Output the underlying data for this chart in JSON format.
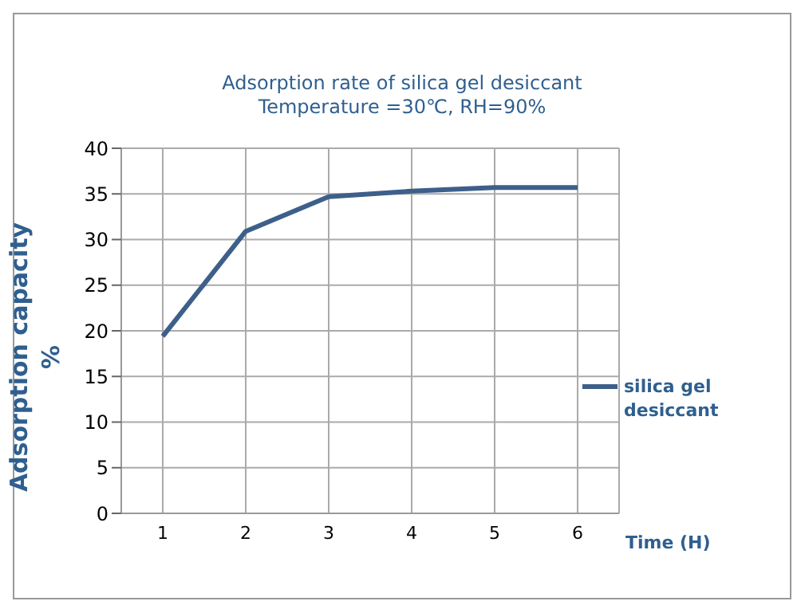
{
  "chart_data": {
    "type": "line",
    "title": "Adsorption rate of silica gel desiccant",
    "subtitle": "Temperature =30℃,  RH=90%",
    "xlabel": "Time (H)",
    "ylabel": "Adsorption capacity %",
    "categories": [
      "1",
      "2",
      "3",
      "4",
      "5",
      "6"
    ],
    "series": [
      {
        "name": "silica gel desiccant",
        "color": "#3d5f8a",
        "values": [
          19.4,
          30.9,
          34.7,
          35.3,
          35.7,
          35.7
        ]
      }
    ],
    "ylim": [
      0,
      40
    ],
    "yticks": [
      0,
      5,
      10,
      15,
      20,
      25,
      30,
      35,
      40
    ],
    "grid": true,
    "legend": "right",
    "marker": "none",
    "line_style": "solid"
  }
}
